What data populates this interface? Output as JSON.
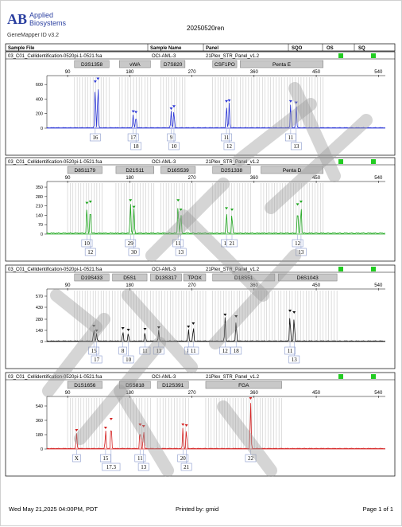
{
  "header": {
    "brand_line1": "Applied",
    "brand_line2": "Biosystems",
    "app_version": "GeneMapper ID v3.2",
    "run_name": "20250520ren"
  },
  "table_header": {
    "col_sample_file": "Sample File",
    "col_sample_name": "Sample Name",
    "col_panel": "Panel",
    "col_sqo": "SQO",
    "col_os": "OS",
    "col_sq": "SQ"
  },
  "colors": {
    "blue": "#2a35d6",
    "green": "#1ea71e",
    "black": "#111111",
    "red": "#d42020",
    "allele_label": "#8899cc",
    "bin": "#c8c8c8",
    "status": "#22cc22",
    "marker_box": "#c8c8c8"
  },
  "chart_data": [
    {
      "type": "line",
      "dye": "blue",
      "sample_file": "03_C01_Cellidentification-0520pi-1-0521.fsa",
      "sample_name": "OCI-AML-3",
      "panel": "21Plex_STR_Panel_v1.2",
      "xlim": [
        60,
        550
      ],
      "xticks": [
        90,
        180,
        270,
        360,
        450,
        540
      ],
      "ylim": [
        0,
        700
      ],
      "yticks": [
        0,
        200,
        400,
        600
      ],
      "markers": [
        {
          "name": "D3S1358",
          "range": [
            100,
            150
          ]
        },
        {
          "name": "vWA",
          "range": [
            165,
            210
          ]
        },
        {
          "name": "D7S820",
          "range": [
            225,
            260
          ]
        },
        {
          "name": "CSF1PO",
          "range": [
            300,
            335
          ]
        },
        {
          "name": "Penta E",
          "range": [
            340,
            460
          ]
        }
      ],
      "peaks": [
        {
          "x": 130,
          "h": 600,
          "label": "16",
          "lab_row": 0
        },
        {
          "x": 134,
          "h": 640,
          "label": "",
          "lab_row": 0
        },
        {
          "x": 185,
          "h": 190,
          "label": "17",
          "lab_row": 0
        },
        {
          "x": 189,
          "h": 180,
          "label": "18",
          "lab_row": 1
        },
        {
          "x": 240,
          "h": 230,
          "label": "9",
          "lab_row": 0
        },
        {
          "x": 244,
          "h": 260,
          "label": "10",
          "lab_row": 1
        },
        {
          "x": 320,
          "h": 330,
          "label": "11",
          "lab_row": 0
        },
        {
          "x": 324,
          "h": 340,
          "label": "12",
          "lab_row": 1
        },
        {
          "x": 413,
          "h": 330,
          "label": "11",
          "lab_row": 0
        },
        {
          "x": 421,
          "h": 310,
          "label": "13",
          "lab_row": 1
        }
      ]
    },
    {
      "type": "line",
      "dye": "green",
      "sample_file": "03_C01_Cellidentification-0520pi-1-0521.fsa",
      "sample_name": "OCI-AML-3",
      "panel": "21Plex_STR_Panel_v1.2",
      "xlim": [
        60,
        550
      ],
      "xticks": [
        90,
        180,
        270,
        360,
        450,
        540
      ],
      "ylim": [
        0,
        380
      ],
      "yticks": [
        0,
        70,
        140,
        210,
        280,
        350
      ],
      "markers": [
        {
          "name": "D8S1179",
          "range": [
            90,
            140
          ]
        },
        {
          "name": "D21S11",
          "range": [
            160,
            215
          ]
        },
        {
          "name": "D16S539",
          "range": [
            225,
            275
          ]
        },
        {
          "name": "D2S1338",
          "range": [
            300,
            355
          ]
        },
        {
          "name": "Penta D",
          "range": [
            370,
            460
          ]
        }
      ],
      "peaks": [
        {
          "x": 118,
          "h": 210,
          "label": "10",
          "lab_row": 0
        },
        {
          "x": 123,
          "h": 220,
          "label": "12",
          "lab_row": 1
        },
        {
          "x": 181,
          "h": 230,
          "label": "29",
          "lab_row": 0
        },
        {
          "x": 186,
          "h": 180,
          "label": "30",
          "lab_row": 1
        },
        {
          "x": 250,
          "h": 230,
          "label": "11",
          "lab_row": 0
        },
        {
          "x": 254,
          "h": 160,
          "label": "13",
          "lab_row": 1
        },
        {
          "x": 320,
          "h": 170,
          "label": "17",
          "lab_row": 0
        },
        {
          "x": 328,
          "h": 160,
          "label": "21",
          "lab_row": 0
        },
        {
          "x": 423,
          "h": 200,
          "label": "12",
          "lab_row": 0
        },
        {
          "x": 428,
          "h": 220,
          "label": "13",
          "lab_row": 1
        }
      ]
    },
    {
      "type": "line",
      "dye": "black",
      "sample_file": "03_C01_Cellidentification-0520pi-1-0521.fsa",
      "sample_name": "OCI-AML-3",
      "panel": "21Plex_STR_Panel_v1.2",
      "xlim": [
        60,
        550
      ],
      "xticks": [
        90,
        180,
        270,
        360,
        450,
        540
      ],
      "ylim": [
        0,
        640
      ],
      "yticks": [
        0,
        140,
        280,
        430,
        570
      ],
      "markers": [
        {
          "name": "D19S433",
          "range": [
            100,
            150
          ]
        },
        {
          "name": "D5S1",
          "range": [
            155,
            205
          ]
        },
        {
          "name": "D13S317",
          "range": [
            210,
            255
          ]
        },
        {
          "name": "TPOX",
          "range": [
            258,
            290
          ]
        },
        {
          "name": "D18S51",
          "range": [
            300,
            390
          ]
        },
        {
          "name": "D6S1043",
          "range": [
            395,
            480
          ]
        }
      ],
      "peaks": [
        {
          "x": 128,
          "h": 160,
          "label": "15",
          "lab_row": 0
        },
        {
          "x": 132,
          "h": 100,
          "label": "17",
          "lab_row": 1
        },
        {
          "x": 170,
          "h": 130,
          "label": "8",
          "lab_row": 0
        },
        {
          "x": 178,
          "h": 110,
          "label": "10",
          "lab_row": 1
        },
        {
          "x": 202,
          "h": 120,
          "label": "11",
          "lab_row": 0
        },
        {
          "x": 222,
          "h": 140,
          "label": "13",
          "lab_row": 0
        },
        {
          "x": 265,
          "h": 150,
          "label": "8",
          "lab_row": 0
        },
        {
          "x": 272,
          "h": 190,
          "label": "11",
          "lab_row": 0
        },
        {
          "x": 318,
          "h": 300,
          "label": "12",
          "lab_row": 0
        },
        {
          "x": 334,
          "h": 280,
          "label": "18",
          "lab_row": 0
        },
        {
          "x": 412,
          "h": 350,
          "label": "11",
          "lab_row": 0
        },
        {
          "x": 418,
          "h": 330,
          "label": "13",
          "lab_row": 1
        }
      ]
    },
    {
      "type": "line",
      "dye": "red",
      "sample_file": "03_C01_Cellidentification-0520pi-1-0521.fsa",
      "sample_name": "OCI-AML-3",
      "panel": "21Plex_STR_Panel_v1.2",
      "xlim": [
        60,
        550
      ],
      "xticks": [
        90,
        180,
        270,
        360,
        450,
        540
      ],
      "ylim": [
        0,
        640
      ],
      "yticks": [
        0,
        180,
        360,
        540
      ],
      "markers": [
        {
          "name": "D1S1656",
          "range": [
            90,
            140
          ]
        },
        {
          "name": "D5S818",
          "range": [
            165,
            210
          ]
        },
        {
          "name": "D12S391",
          "range": [
            220,
            265
          ]
        },
        {
          "name": "FGA",
          "range": [
            290,
            400
          ]
        }
      ],
      "peaks": [
        {
          "x": 103,
          "h": 200,
          "label": "X",
          "lab_row": 0
        },
        {
          "x": 145,
          "h": 230,
          "label": "15",
          "lab_row": 0
        },
        {
          "x": 153,
          "h": 340,
          "label": "17.3",
          "lab_row": 1
        },
        {
          "x": 195,
          "h": 270,
          "label": "11",
          "lab_row": 0
        },
        {
          "x": 200,
          "h": 250,
          "label": "13",
          "lab_row": 1
        },
        {
          "x": 257,
          "h": 270,
          "label": "20",
          "lab_row": 0
        },
        {
          "x": 262,
          "h": 260,
          "label": "21",
          "lab_row": 1
        },
        {
          "x": 355,
          "h": 600,
          "label": "22",
          "lab_row": 0
        }
      ]
    }
  ],
  "footer": {
    "date": "Wed May 21,2025 04:00PM, PDT",
    "printed_by": "Printed by: gmid",
    "page": "Page 1 of 1"
  }
}
